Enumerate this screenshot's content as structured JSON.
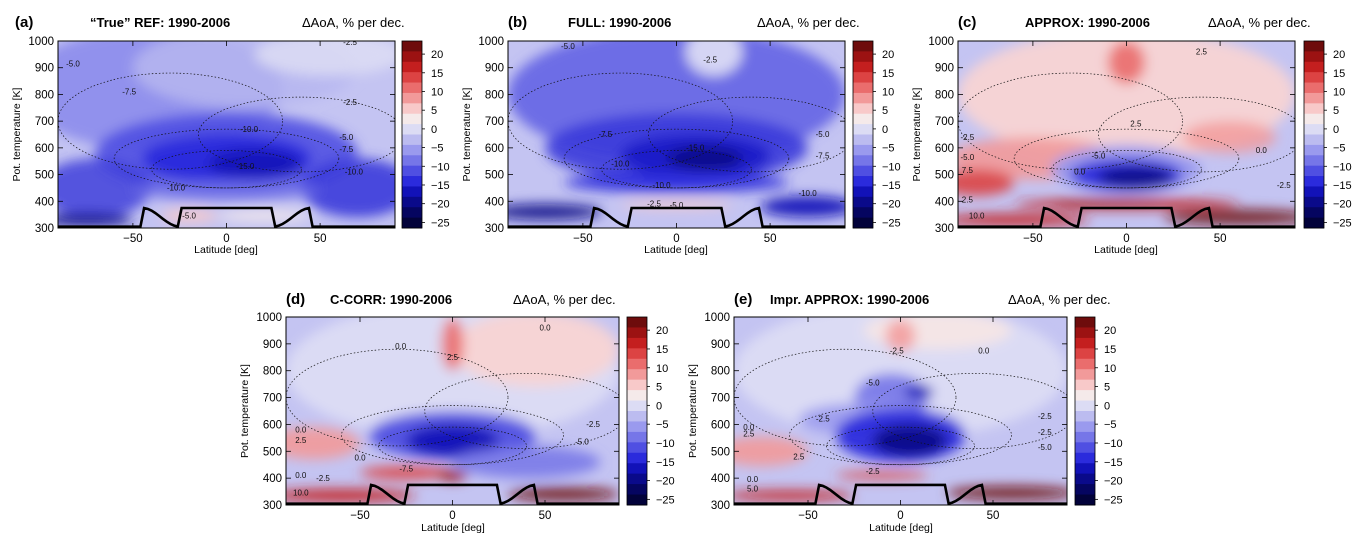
{
  "chart_data": [
    {
      "type": "heatmap",
      "panel_label": "(a)",
      "title": "“True” REF: 1990-2006",
      "right_title": "ΔAoA, % per dec.",
      "xlabel": "Latitude [deg]",
      "ylabel": "Pot. temperature [K]",
      "xlim": [
        -90,
        90
      ],
      "ylim": [
        300,
        1000
      ],
      "xticks": [
        -50,
        0,
        50
      ],
      "yticks": [
        300,
        400,
        500,
        600,
        700,
        800,
        900,
        1000
      ],
      "colorbar_ticks": [
        20,
        15,
        10,
        5,
        0,
        -5,
        -10,
        -15,
        -20,
        -25
      ],
      "contour_labels": [
        {
          "text": "-5.0",
          "x": -82,
          "y": 905
        },
        {
          "text": "-7.5",
          "x": -52,
          "y": 800
        },
        {
          "text": "-2.5",
          "x": 66,
          "y": 985
        },
        {
          "text": "-2.5",
          "x": 66,
          "y": 760
        },
        {
          "text": "-10.0",
          "x": 12,
          "y": 660
        },
        {
          "text": "-5.0",
          "x": 64,
          "y": 630
        },
        {
          "text": "-7.5",
          "x": 64,
          "y": 585
        },
        {
          "text": "-10.0",
          "x": 68,
          "y": 500
        },
        {
          "text": "-15.0",
          "x": 10,
          "y": 520
        },
        {
          "text": "-10.0",
          "x": -27,
          "y": 440
        },
        {
          "text": "-5.0",
          "x": -20,
          "y": 335
        }
      ]
    },
    {
      "type": "heatmap",
      "panel_label": "(b)",
      "title": "FULL: 1990-2006",
      "right_title": "ΔAoA, % per dec.",
      "xlabel": "Latitude [deg]",
      "ylabel": "Pot. temperature [K]",
      "xlim": [
        -90,
        90
      ],
      "ylim": [
        300,
        1000
      ],
      "xticks": [
        -50,
        0,
        50
      ],
      "yticks": [
        300,
        400,
        500,
        600,
        700,
        800,
        900,
        1000
      ],
      "colorbar_ticks": [
        20,
        15,
        10,
        5,
        0,
        -5,
        -10,
        -15,
        -20,
        -25
      ],
      "contour_labels": [
        {
          "text": "-5.0",
          "x": -58,
          "y": 970
        },
        {
          "text": "-2.5",
          "x": 18,
          "y": 920
        },
        {
          "text": "-7.5",
          "x": -38,
          "y": 640
        },
        {
          "text": "-5.0",
          "x": 78,
          "y": 640
        },
        {
          "text": "-7.5",
          "x": 78,
          "y": 560
        },
        {
          "text": "-10.0",
          "x": -30,
          "y": 530
        },
        {
          "text": "-15.0",
          "x": 10,
          "y": 590
        },
        {
          "text": "-10.0",
          "x": -8,
          "y": 450
        },
        {
          "text": "-10.0",
          "x": 70,
          "y": 420
        },
        {
          "text": "-2.5",
          "x": -12,
          "y": 380
        },
        {
          "text": "-5.0",
          "x": 0,
          "y": 375
        }
      ]
    },
    {
      "type": "heatmap",
      "panel_label": "(c)",
      "title": "APPROX: 1990-2006",
      "right_title": "ΔAoA, % per dec.",
      "xlabel": "Latitude [deg]",
      "ylabel": "Pot. temperature [K]",
      "xlim": [
        -90,
        90
      ],
      "ylim": [
        300,
        1000
      ],
      "xticks": [
        -50,
        0,
        50
      ],
      "yticks": [
        300,
        400,
        500,
        600,
        700,
        800,
        900,
        1000
      ],
      "colorbar_ticks": [
        20,
        15,
        10,
        5,
        0,
        -5,
        -10,
        -15,
        -20,
        -25
      ],
      "contour_labels": [
        {
          "text": "2.5",
          "x": 40,
          "y": 950
        },
        {
          "text": "2.5",
          "x": 5,
          "y": 680
        },
        {
          "text": "-2.5",
          "x": -85,
          "y": 630
        },
        {
          "text": "-5.0",
          "x": -85,
          "y": 555
        },
        {
          "text": "7.5",
          "x": -85,
          "y": 505
        },
        {
          "text": "0.0",
          "x": 72,
          "y": 580
        },
        {
          "text": "-5.0",
          "x": -15,
          "y": 560
        },
        {
          "text": "0.0",
          "x": -25,
          "y": 500
        },
        {
          "text": "-2.5",
          "x": 84,
          "y": 450
        },
        {
          "text": "2.5",
          "x": -85,
          "y": 395
        },
        {
          "text": "10.0",
          "x": -80,
          "y": 335
        }
      ]
    },
    {
      "type": "heatmap",
      "panel_label": "(d)",
      "title": "C-CORR: 1990-2006",
      "right_title": "ΔAoA, % per dec.",
      "xlabel": "Latitude [deg]",
      "ylabel": "Pot. temperature [K]",
      "xlim": [
        -90,
        90
      ],
      "ylim": [
        300,
        1000
      ],
      "xticks": [
        -50,
        0,
        50
      ],
      "yticks": [
        300,
        400,
        500,
        600,
        700,
        800,
        900,
        1000
      ],
      "colorbar_ticks": [
        20,
        15,
        10,
        5,
        0,
        -5,
        -10,
        -15,
        -20,
        -25
      ],
      "contour_labels": [
        {
          "text": "0.0",
          "x": 50,
          "y": 950
        },
        {
          "text": "0.0",
          "x": -28,
          "y": 880
        },
        {
          "text": "2.5",
          "x": 0,
          "y": 840
        },
        {
          "text": "0.0",
          "x": -82,
          "y": 570
        },
        {
          "text": "2.5",
          "x": -82,
          "y": 530
        },
        {
          "text": "-2.5",
          "x": 76,
          "y": 590
        },
        {
          "text": "-5.0",
          "x": 70,
          "y": 525
        },
        {
          "text": "0.0",
          "x": -50,
          "y": 465
        },
        {
          "text": "-7.5",
          "x": -25,
          "y": 425
        },
        {
          "text": "0.0",
          "x": -82,
          "y": 400
        },
        {
          "text": "-2.5",
          "x": -70,
          "y": 390
        },
        {
          "text": "10.0",
          "x": -82,
          "y": 335
        }
      ]
    },
    {
      "type": "heatmap",
      "panel_label": "(e)",
      "title": "Impr. APPROX: 1990-2006",
      "right_title": "ΔAoA, % per dec.",
      "xlabel": "Latitude [deg]",
      "ylabel": "Pot. temperature [K]",
      "xlim": [
        -90,
        90
      ],
      "ylim": [
        300,
        1000
      ],
      "xticks": [
        -50,
        0,
        50
      ],
      "yticks": [
        300,
        400,
        500,
        600,
        700,
        800,
        900,
        1000
      ],
      "colorbar_ticks": [
        20,
        15,
        10,
        5,
        0,
        -5,
        -10,
        -15,
        -20,
        -25
      ],
      "contour_labels": [
        {
          "text": "-2.5",
          "x": -2,
          "y": 865
        },
        {
          "text": "0.0",
          "x": 45,
          "y": 865
        },
        {
          "text": "-5.0",
          "x": -15,
          "y": 745
        },
        {
          "text": "-2.5",
          "x": -42,
          "y": 610
        },
        {
          "text": "-2.5",
          "x": 78,
          "y": 620
        },
        {
          "text": "-2.5",
          "x": 78,
          "y": 560
        },
        {
          "text": "-5.0",
          "x": 78,
          "y": 505
        },
        {
          "text": "0.0",
          "x": -82,
          "y": 580
        },
        {
          "text": "2.5",
          "x": -82,
          "y": 555
        },
        {
          "text": "2.5",
          "x": -55,
          "y": 470
        },
        {
          "text": "-2.5",
          "x": -15,
          "y": 415
        },
        {
          "text": "0.0",
          "x": -80,
          "y": 385
        },
        {
          "text": "5.0",
          "x": -80,
          "y": 350
        }
      ]
    }
  ]
}
